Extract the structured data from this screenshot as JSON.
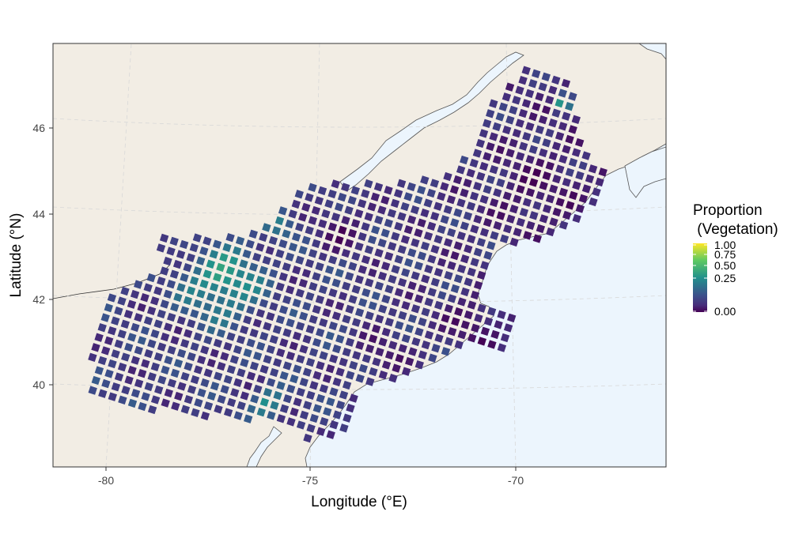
{
  "map": {
    "x_axis_label": "Longitude (°E)",
    "y_axis_label": "Latitude (°N)",
    "x_ticks": [
      {
        "value": -80,
        "label": "-80"
      },
      {
        "value": -75,
        "label": "-75"
      },
      {
        "value": -70,
        "label": "-70"
      }
    ],
    "y_ticks": [
      {
        "value": 46,
        "label": "46"
      },
      {
        "value": 44,
        "label": "44"
      },
      {
        "value": 42,
        "label": "42"
      },
      {
        "value": 40,
        "label": "40"
      }
    ],
    "x_range": [
      -81.4,
      -66.4
    ],
    "y_range": [
      38.1,
      47.9
    ],
    "land_color": "#f2ede4",
    "water_color": "#ecf5fd",
    "grid": true,
    "grid_color": "#dcdcdc",
    "coastline_color": "#555555"
  },
  "legend": {
    "title_line1": "Proportion",
    "title_line2": " (Vegetation)",
    "placement": "right",
    "colormap": "viridis",
    "ticks": [
      {
        "value": 1.0,
        "label": "1.00"
      },
      {
        "value": 0.75,
        "label": "0.75"
      },
      {
        "value": 0.5,
        "label": "0.50"
      },
      {
        "value": 0.25,
        "label": "0.25"
      },
      {
        "value": 0.0,
        "label": "0.00"
      }
    ],
    "colors": [
      "#440154",
      "#3b528b",
      "#21908c",
      "#5dc963",
      "#fde725"
    ]
  }
}
